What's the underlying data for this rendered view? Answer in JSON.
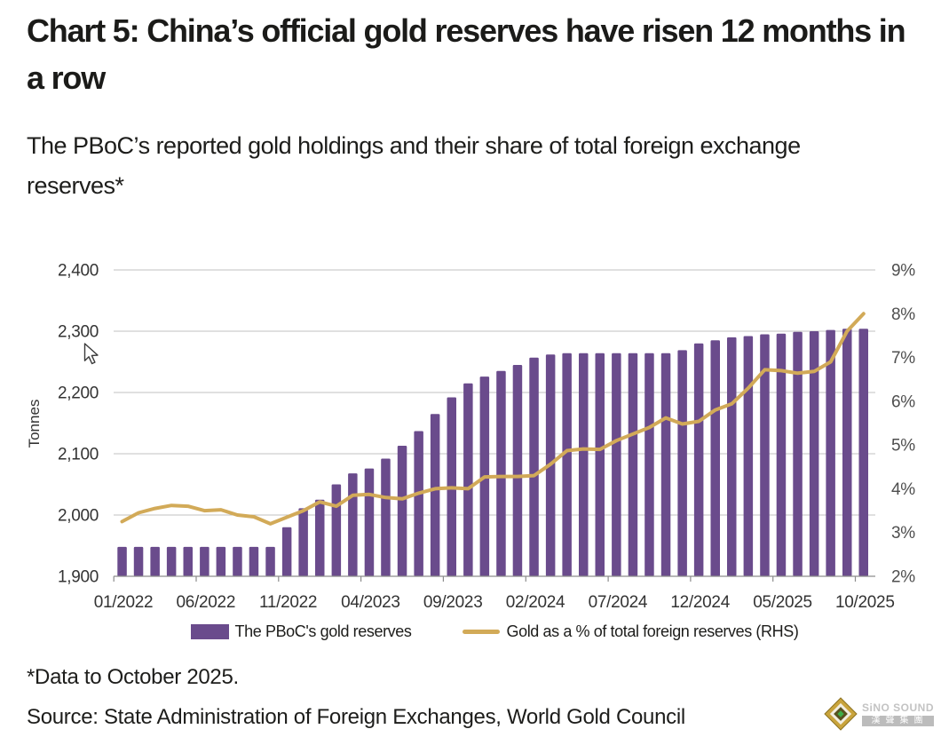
{
  "title": "Chart 5: China’s official gold reserves have risen 12 months in a row",
  "subtitle": "The PBoC’s reported gold holdings and their share of total foreign exchange reserves*",
  "footnote": "*Data to October 2025.",
  "source": "Source: State Administration of Foreign Exchanges, World Gold Council",
  "logo": {
    "brand": "SiNO SOUND",
    "brand_cn": "漢聲集團"
  },
  "legend": [
    {
      "label": "The PBoC's gold reserves",
      "type": "bar"
    },
    {
      "label": "Gold as a % of total foreign reserves (RHS)",
      "type": "line"
    }
  ],
  "colors": {
    "bar": "#6a4b8c",
    "line": "#d2aa58",
    "grid": "#c2c2c2",
    "axis": "#8c8c8c",
    "tick_text": "#333333",
    "tick_text_right": "#4f4f4f"
  },
  "chart_data": {
    "type": "bar",
    "title": "The PBoC's gold holdings and their share of total foreign exchange reserves",
    "x": [
      "01/2022",
      "02/2022",
      "03/2022",
      "04/2022",
      "05/2022",
      "06/2022",
      "07/2022",
      "08/2022",
      "09/2022",
      "10/2022",
      "11/2022",
      "12/2022",
      "01/2023",
      "02/2023",
      "03/2023",
      "04/2023",
      "05/2023",
      "06/2023",
      "07/2023",
      "08/2023",
      "09/2023",
      "10/2023",
      "11/2023",
      "12/2023",
      "01/2024",
      "02/2024",
      "03/2024",
      "04/2024",
      "05/2024",
      "06/2024",
      "07/2024",
      "08/2024",
      "09/2024",
      "10/2024",
      "11/2024",
      "12/2024",
      "01/2025",
      "02/2025",
      "03/2025",
      "04/2025",
      "05/2025",
      "06/2025",
      "07/2025",
      "08/2025",
      "09/2025",
      "10/2025"
    ],
    "series": [
      {
        "name": "The PBoC's gold reserves",
        "type": "bar",
        "axis": "left",
        "unit": "tonnes",
        "values": [
          1948,
          1948,
          1948,
          1948,
          1948,
          1948,
          1948,
          1948,
          1948,
          1948,
          1980,
          2011,
          2025,
          2050,
          2068,
          2076,
          2092,
          2113,
          2137,
          2165,
          2192,
          2215,
          2226,
          2235,
          2245,
          2257,
          2262,
          2264,
          2264,
          2264,
          2264,
          2264,
          2264,
          2264,
          2269,
          2280,
          2285,
          2290,
          2292,
          2295,
          2296,
          2299,
          2300,
          2302,
          2304,
          2304
        ]
      },
      {
        "name": "Gold as a % of total foreign reserves (RHS)",
        "type": "line",
        "axis": "right",
        "unit": "%",
        "values": [
          3.25,
          3.45,
          3.55,
          3.62,
          3.6,
          3.5,
          3.52,
          3.4,
          3.36,
          3.2,
          3.35,
          3.5,
          3.7,
          3.6,
          3.85,
          3.87,
          3.8,
          3.77,
          3.9,
          4.0,
          4.02,
          4.0,
          4.27,
          4.28,
          4.28,
          4.3,
          4.56,
          4.87,
          4.91,
          4.9,
          5.1,
          5.25,
          5.4,
          5.62,
          5.48,
          5.54,
          5.8,
          5.94,
          6.3,
          6.72,
          6.7,
          6.64,
          6.68,
          6.9,
          7.6,
          8.0
        ]
      }
    ],
    "left_axis": {
      "label": "Tonnes",
      "min": 1900,
      "max": 2400,
      "ticks": [
        1900,
        2000,
        2100,
        2200,
        2300,
        2400
      ]
    },
    "right_axis": {
      "label": "%",
      "min": 2,
      "max": 9,
      "ticks": [
        2,
        3,
        4,
        5,
        6,
        7,
        8,
        9
      ]
    },
    "x_tick_labels": [
      "01/2022",
      "06/2022",
      "11/2022",
      "04/2023",
      "09/2023",
      "02/2024",
      "07/2024",
      "12/2024",
      "05/2025",
      "10/2025"
    ],
    "grid": true,
    "legend_position": "bottom"
  }
}
